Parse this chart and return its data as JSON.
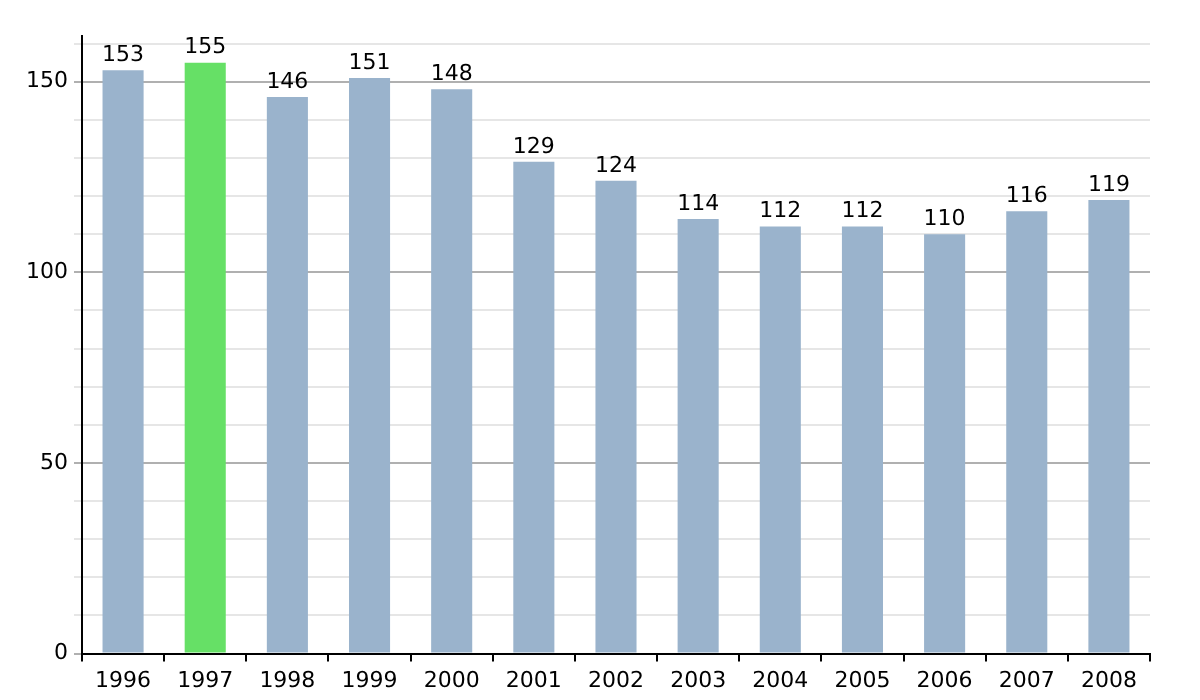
{
  "chart_data": {
    "type": "bar",
    "categories": [
      "1996",
      "1997",
      "1998",
      "1999",
      "2000",
      "2001",
      "2002",
      "2003",
      "2004",
      "2005",
      "2006",
      "2007",
      "2008"
    ],
    "values": [
      153,
      155,
      146,
      151,
      148,
      129,
      124,
      114,
      112,
      112,
      110,
      116,
      119
    ],
    "colors": [
      "#9ab3cc",
      "#66e066",
      "#9ab3cc",
      "#9ab3cc",
      "#9ab3cc",
      "#9ab3cc",
      "#9ab3cc",
      "#9ab3cc",
      "#9ab3cc",
      "#9ab3cc",
      "#9ab3cc",
      "#9ab3cc",
      "#9ab3cc"
    ],
    "ylim": [
      0,
      162
    ],
    "yticks": [
      0,
      {
        "value": 10,
        "label": null
      },
      {
        "value": 20,
        "label": null
      },
      {
        "value": 30,
        "label": null
      },
      {
        "value": 40,
        "label": null
      },
      50,
      {
        "value": 60,
        "label": null
      },
      {
        "value": 70,
        "label": null
      },
      {
        "value": 80,
        "label": null
      },
      {
        "value": 90,
        "label": null
      },
      100,
      {
        "value": 110,
        "label": null
      },
      {
        "value": 120,
        "label": null
      },
      {
        "value": 130,
        "label": null
      },
      {
        "value": 140,
        "label": null
      },
      150,
      {
        "value": 160,
        "label": null
      }
    ],
    "grid": true,
    "data_labels": true
  }
}
